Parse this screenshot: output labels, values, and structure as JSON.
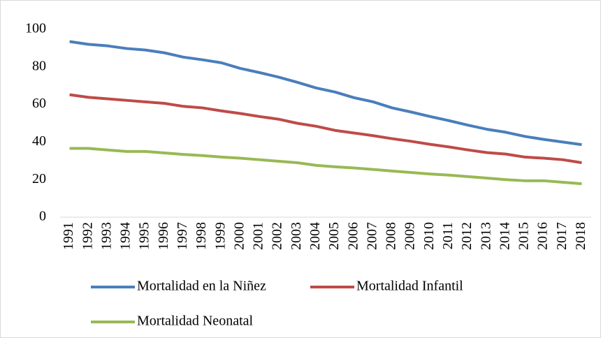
{
  "chart_data": {
    "type": "line",
    "categories": [
      "1991",
      "1992",
      "1993",
      "1994",
      "1995",
      "1996",
      "1997",
      "1998",
      "1999",
      "2000",
      "2001",
      "2002",
      "2003",
      "2004",
      "2005",
      "2006",
      "2007",
      "2008",
      "2009",
      "2010",
      "2011",
      "2012",
      "2013",
      "2014",
      "2015",
      "2016",
      "2017",
      "2018"
    ],
    "series": [
      {
        "name": "Mortalidad en la Niñez",
        "color": "#4a7ebb",
        "values": [
          93.5,
          92,
          91.2,
          89.8,
          89,
          87.5,
          85.2,
          83.8,
          82.2,
          79.2,
          77,
          74.6,
          71.8,
          68.8,
          66.6,
          63.6,
          61.4,
          58.2,
          56,
          53.6,
          51.4,
          49,
          46.8,
          45.2,
          43,
          41.4,
          40,
          38.6
        ]
      },
      {
        "name": "Mortalidad Infantil",
        "color": "#be4b48",
        "values": [
          65.2,
          63.8,
          63,
          62.2,
          61.4,
          60.6,
          59,
          58.2,
          56.6,
          55.2,
          53.6,
          52.2,
          50,
          48.4,
          46.2,
          44.8,
          43.4,
          41.8,
          40.4,
          38.8,
          37.4,
          35.8,
          34.4,
          33.6,
          32,
          31.4,
          30.6,
          29
        ]
      },
      {
        "name": "Mortalidad Neonatal",
        "color": "#98b954",
        "values": [
          36.6,
          36.6,
          35.8,
          35,
          35,
          34.2,
          33.4,
          32.8,
          32,
          31.4,
          30.6,
          29.8,
          29,
          27.6,
          26.8,
          26.2,
          25.4,
          24.6,
          23.8,
          23,
          22.4,
          21.6,
          20.8,
          20,
          19.4,
          19.4,
          18.6,
          17.8
        ]
      }
    ],
    "ylim": [
      0,
      100
    ],
    "yticks": [
      0,
      20,
      40,
      60,
      80,
      100
    ],
    "grid": false,
    "legend": "bottom"
  }
}
